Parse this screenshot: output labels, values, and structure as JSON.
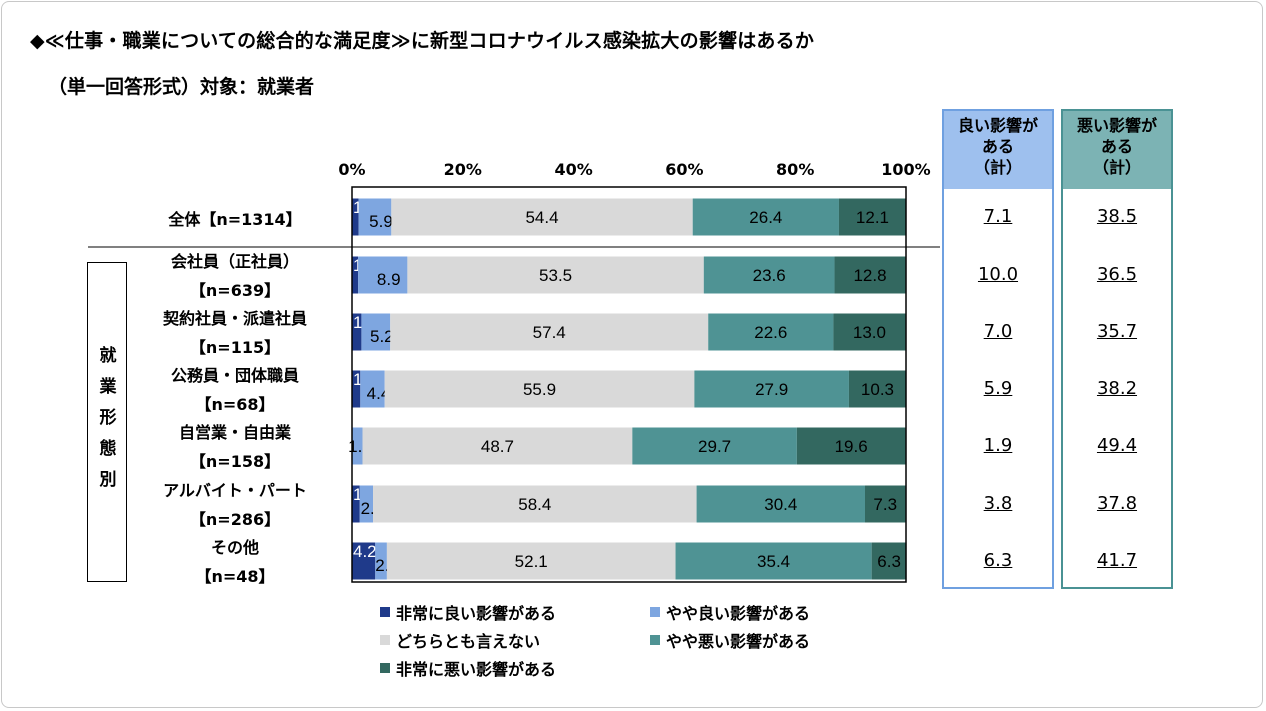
{
  "title": "◆≪仕事・職業についての総合的な満足度≫に新型コロナウイルス感染拡大の影響はあるか",
  "subtitle": "（単一回答形式）対象：就業者",
  "colors": {
    "very_good": "#1f3a8a",
    "somewhat_good": "#7ea6e0",
    "neutral": "#d9d9d9",
    "somewhat_bad": "#4f9394",
    "very_bad": "#336860",
    "good_box": "#6fa0e0",
    "good_head_bg": "#9ec0ee",
    "bad_box": "#4a9294",
    "bad_head_bg": "#7cb3b4"
  },
  "group_label": "就業形態別",
  "summary": {
    "good_header": "良い影響がある（計）",
    "bad_header": "悪い影響がある（計）"
  },
  "chart_data": {
    "type": "bar",
    "orientation": "horizontal-stacked-100",
    "x_ticks": [
      "0%",
      "20%",
      "40%",
      "60%",
      "80%",
      "100%"
    ],
    "xlim": [
      0,
      100
    ],
    "categories": [
      {
        "label1": "全体【n=1314】",
        "label2": ""
      },
      {
        "label1": "会社員（正社員）",
        "label2": "【n=639】"
      },
      {
        "label1": "契約社員・派遣社員",
        "label2": "【n=115】"
      },
      {
        "label1": "公務員・団体職員",
        "label2": "【n=68】"
      },
      {
        "label1": "自営業・自由業",
        "label2": "【n=158】"
      },
      {
        "label1": "アルバイト・パート",
        "label2": "【n=286】"
      },
      {
        "label1": "その他",
        "label2": "【n=48】"
      }
    ],
    "series": [
      {
        "name": "非常に良い影響がある",
        "color": "#1f3a8a",
        "values": [
          1.2,
          1.1,
          1.7,
          1.5,
          0.0,
          1.4,
          4.2
        ]
      },
      {
        "name": "やや良い影響がある",
        "color": "#7ea6e0",
        "values": [
          5.9,
          8.9,
          5.2,
          4.4,
          1.9,
          2.4,
          2.1
        ]
      },
      {
        "name": "どちらとも言えない",
        "color": "#d9d9d9",
        "values": [
          54.4,
          53.5,
          57.4,
          55.9,
          48.7,
          58.4,
          52.1
        ]
      },
      {
        "name": "やや悪い影響がある",
        "color": "#4f9394",
        "values": [
          26.4,
          23.6,
          22.6,
          27.9,
          29.7,
          30.4,
          35.4
        ]
      },
      {
        "name": "非常に悪い影響がある",
        "color": "#336860",
        "values": [
          12.1,
          12.8,
          13.0,
          10.3,
          19.6,
          7.3,
          6.3
        ]
      }
    ],
    "good_total": [
      "7.1",
      "10.0",
      "7.0",
      "5.9",
      "1.9",
      "3.8",
      "6.3"
    ],
    "bad_total": [
      "38.5",
      "36.5",
      "35.7",
      "38.2",
      "49.4",
      "37.8",
      "41.7"
    ],
    "legend": [
      "非常に良い影響がある",
      "やや良い影響がある",
      "どちらとも言えない",
      "やや悪い影響がある",
      "非常に悪い影響がある"
    ]
  }
}
